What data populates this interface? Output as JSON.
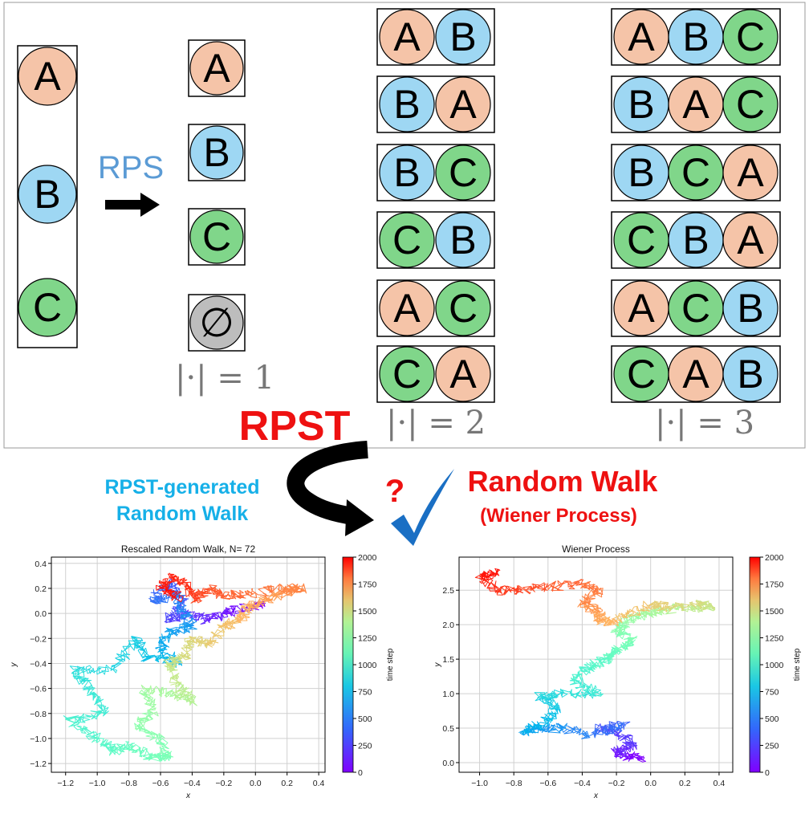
{
  "colors": {
    "A": "#f5c4a8",
    "B": "#9ed7f3",
    "C": "#80d68a",
    "empty": "#bdbdbd",
    "rps": "#5b9bd5",
    "red": "#ee1111",
    "cyan": "#16b0e8",
    "check": "#1a6fc4",
    "frame": "#9a9a9a"
  },
  "top": {
    "set": [
      "A",
      "B",
      "C"
    ],
    "rps_label": "RPS",
    "singles": [
      "A",
      "B",
      "C",
      "∅"
    ],
    "pairs": [
      [
        "A",
        "B"
      ],
      [
        "B",
        "A"
      ],
      [
        "B",
        "C"
      ],
      [
        "C",
        "B"
      ],
      [
        "A",
        "C"
      ],
      [
        "C",
        "A"
      ]
    ],
    "triples": [
      [
        "A",
        "B",
        "C"
      ],
      [
        "B",
        "A",
        "C"
      ],
      [
        "B",
        "C",
        "A"
      ],
      [
        "C",
        "B",
        "A"
      ],
      [
        "A",
        "C",
        "B"
      ],
      [
        "C",
        "A",
        "B"
      ]
    ],
    "card1": "|·| = 1",
    "card2": "|·| = 2",
    "card3": "|·| = 3"
  },
  "middle": {
    "rpst": "RPST",
    "left_line1": "RPST-generated",
    "left_line2": "Random Walk",
    "question": "?",
    "right_line1": "Random Walk",
    "right_line2": "(Wiener Process)",
    "icons": [
      "curved-arrow-icon",
      "check-icon"
    ]
  },
  "chart_data": [
    {
      "type": "line",
      "title": "Rescaled Random Walk, N= 72",
      "xlabel": "x",
      "ylabel": "y",
      "xlim": [
        -1.29,
        0.44
      ],
      "ylim": [
        -1.27,
        0.45
      ],
      "xticks": [
        "−1.2",
        "−1.0",
        "−0.8",
        "−0.6",
        "−0.4",
        "−0.2",
        "0.0",
        "0.2",
        "0.4"
      ],
      "xtick_values": [
        -1.2,
        -1.0,
        -0.8,
        -0.6,
        -0.4,
        -0.2,
        0.0,
        0.2,
        0.4
      ],
      "yticks": [
        "−1.2",
        "−1.0",
        "−0.8",
        "−0.6",
        "−0.4",
        "−0.2",
        "0.0",
        "0.2",
        "0.4"
      ],
      "ytick_values": [
        -1.2,
        -1.0,
        -0.8,
        -0.6,
        -0.4,
        -0.2,
        0.0,
        0.2,
        0.4
      ],
      "grid": true,
      "colormap": "rainbow",
      "colorbar": {
        "label": "time step",
        "range": [
          0,
          2000
        ],
        "ticks": [
          "0",
          "250",
          "500",
          "750",
          "1000",
          "1250",
          "1500",
          "1750",
          "2000"
        ]
      },
      "path": [
        [
          0.05,
          0.08
        ],
        [
          -0.05,
          0.05
        ],
        [
          -0.2,
          0.0
        ],
        [
          -0.3,
          -0.05
        ],
        [
          -0.45,
          0.0
        ],
        [
          -0.55,
          -0.05
        ],
        [
          -0.45,
          0.1
        ],
        [
          -0.55,
          0.25
        ],
        [
          -0.65,
          0.1
        ],
        [
          -0.5,
          0.15
        ],
        [
          -0.45,
          0.0
        ],
        [
          -0.4,
          -0.1
        ],
        [
          -0.55,
          -0.15
        ],
        [
          -0.6,
          -0.3
        ],
        [
          -0.48,
          -0.4
        ],
        [
          -0.7,
          -0.35
        ],
        [
          -0.75,
          -0.2
        ],
        [
          -0.9,
          -0.45
        ],
        [
          -1.15,
          -0.45
        ],
        [
          -1.05,
          -0.6
        ],
        [
          -0.95,
          -0.8
        ],
        [
          -1.18,
          -0.85
        ],
        [
          -1.0,
          -1.0
        ],
        [
          -0.9,
          -1.1
        ],
        [
          -0.8,
          -1.05
        ],
        [
          -0.65,
          -1.15
        ],
        [
          -0.55,
          -1.15
        ],
        [
          -0.6,
          -1.0
        ],
        [
          -0.75,
          -0.9
        ],
        [
          -0.65,
          -0.8
        ],
        [
          -0.7,
          -0.6
        ],
        [
          -0.5,
          -0.65
        ],
        [
          -0.4,
          -0.7
        ],
        [
          -0.5,
          -0.55
        ],
        [
          -0.55,
          -0.4
        ],
        [
          -0.45,
          -0.35
        ],
        [
          -0.4,
          -0.2
        ],
        [
          -0.3,
          -0.25
        ],
        [
          -0.2,
          -0.1
        ],
        [
          -0.1,
          -0.05
        ],
        [
          -0.05,
          0.05
        ],
        [
          0.05,
          0.1
        ],
        [
          0.15,
          0.15
        ],
        [
          0.3,
          0.2
        ],
        [
          0.15,
          0.2
        ],
        [
          -0.05,
          0.15
        ],
        [
          -0.2,
          0.15
        ],
        [
          -0.3,
          0.2
        ],
        [
          -0.38,
          0.1
        ],
        [
          -0.42,
          0.2
        ],
        [
          -0.5,
          0.3
        ],
        [
          -0.6,
          0.2
        ],
        [
          -0.48,
          0.12
        ]
      ]
    },
    {
      "type": "line",
      "title": "Wiener Process",
      "xlabel": "x",
      "ylabel": "y",
      "xlim": [
        -1.12,
        0.48
      ],
      "ylim": [
        -0.14,
        2.98
      ],
      "xticks": [
        "−1.0",
        "−0.8",
        "−0.6",
        "−0.4",
        "−0.2",
        "0.0",
        "0.2",
        "0.4"
      ],
      "xtick_values": [
        -1.0,
        -0.8,
        -0.6,
        -0.4,
        -0.2,
        0.0,
        0.2,
        0.4
      ],
      "yticks": [
        "0.0",
        "0.5",
        "1.0",
        "1.5",
        "2.0",
        "2.5"
      ],
      "ytick_values": [
        0.0,
        0.5,
        1.0,
        1.5,
        2.0,
        2.5
      ],
      "grid": true,
      "colormap": "rainbow",
      "colorbar": {
        "label": "time step",
        "range": [
          0,
          2000
        ],
        "ticks": [
          "0",
          "250",
          "500",
          "750",
          "1000",
          "1250",
          "1500",
          "1750",
          "2000"
        ]
      },
      "path": [
        [
          -0.05,
          0.05
        ],
        [
          -0.15,
          0.1
        ],
        [
          -0.2,
          0.15
        ],
        [
          -0.1,
          0.25
        ],
        [
          -0.2,
          0.45
        ],
        [
          -0.3,
          0.5
        ],
        [
          -0.15,
          0.55
        ],
        [
          -0.35,
          0.4
        ],
        [
          -0.5,
          0.5
        ],
        [
          -0.65,
          0.5
        ],
        [
          -0.75,
          0.45
        ],
        [
          -0.6,
          0.6
        ],
        [
          -0.55,
          0.8
        ],
        [
          -0.65,
          0.95
        ],
        [
          -0.5,
          1.0
        ],
        [
          -0.3,
          1.0
        ],
        [
          -0.45,
          1.2
        ],
        [
          -0.35,
          1.4
        ],
        [
          -0.25,
          1.5
        ],
        [
          -0.2,
          1.65
        ],
        [
          -0.1,
          1.75
        ],
        [
          -0.2,
          1.9
        ],
        [
          -0.15,
          2.05
        ],
        [
          -0.05,
          2.15
        ],
        [
          0.05,
          2.2
        ],
        [
          0.2,
          2.25
        ],
        [
          0.35,
          2.25
        ],
        [
          0.3,
          2.3
        ],
        [
          0.1,
          2.25
        ],
        [
          0.0,
          2.3
        ],
        [
          -0.2,
          2.05
        ],
        [
          -0.3,
          2.05
        ],
        [
          -0.3,
          2.2
        ],
        [
          -0.4,
          2.3
        ],
        [
          -0.3,
          2.5
        ],
        [
          -0.4,
          2.6
        ],
        [
          -0.6,
          2.55
        ],
        [
          -0.75,
          2.5
        ],
        [
          -0.9,
          2.5
        ],
        [
          -1.0,
          2.7
        ],
        [
          -0.9,
          2.75
        ]
      ]
    }
  ]
}
